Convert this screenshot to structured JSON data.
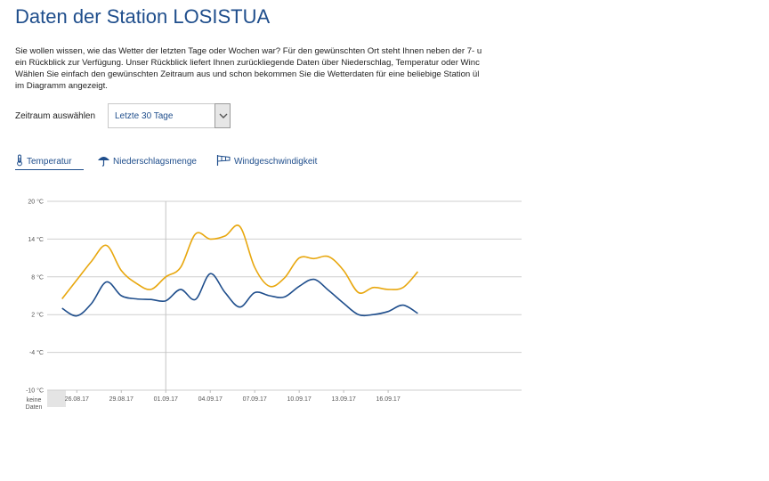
{
  "page": {
    "title": "Daten der Station LOSISTUA",
    "intro_lines": [
      "Sie wollen wissen, wie das Wetter der letzten Tage oder Wochen war? Für den gewünschten Ort steht Ihnen neben der 7- u",
      "ein Rückblick zur Verfügung. Unser Rückblick liefert Ihnen zurückliegende Daten über Niederschlag, Temperatur oder Winc",
      "Wählen Sie einfach den gewünschten Zeitraum aus und schon bekommen Sie die Wetterdaten für eine beliebige Station ül",
      "im Diagramm angezeigt."
    ]
  },
  "period": {
    "label": "Zeitraum auswählen",
    "selected": "Letzte 30 Tage"
  },
  "tabs": [
    {
      "label": "Temperatur",
      "icon": "thermometer-icon",
      "active": true
    },
    {
      "label": "Niederschlagsmenge",
      "icon": "umbrella-icon",
      "active": false
    },
    {
      "label": "Windgeschwindigkeit",
      "icon": "windsock-icon",
      "active": false
    }
  ],
  "chart_data": {
    "type": "line",
    "y_unit": "°C",
    "ylim": [
      -10,
      20
    ],
    "yticks": [
      "20 °C",
      "14 °C",
      "8 °C",
      "2 °C",
      "-4 °C",
      "-10 °C"
    ],
    "xlim": [
      "24.08.17",
      "25.09.17"
    ],
    "xticks": [
      "26.08.17",
      "29.08.17",
      "01.09.17",
      "04.09.17",
      "07.09.17",
      "10.09.17",
      "13.09.17",
      "16.09.17"
    ],
    "grid": "horizontal",
    "marker_line": "01.09.17",
    "no_data_label": "keine Daten",
    "series": [
      {
        "color": "#e8a70e",
        "x": [
          "25.08.17",
          "26.08.17",
          "27.08.17",
          "28.08.17",
          "29.08.17",
          "30.08.17",
          "31.08.17",
          "01.09.17",
          "02.09.17",
          "03.09.17",
          "04.09.17",
          "05.09.17",
          "06.09.17",
          "07.09.17",
          "08.09.17",
          "09.09.17",
          "10.09.17",
          "11.09.17",
          "12.09.17",
          "13.09.17",
          "14.09.17",
          "15.09.17",
          "16.09.17",
          "17.09.17",
          "18.09.17"
        ],
        "values": [
          4.5,
          7.5,
          10.5,
          13.0,
          9.0,
          7.0,
          6.0,
          8.0,
          9.5,
          14.8,
          14.0,
          14.5,
          16.0,
          9.5,
          6.5,
          7.8,
          11.0,
          10.9,
          11.2,
          9.0,
          5.5,
          6.3,
          6.0,
          6.3,
          8.8
        ]
      },
      {
        "color": "#1f4e8c",
        "x": [
          "25.08.17",
          "26.08.17",
          "27.08.17",
          "28.08.17",
          "29.08.17",
          "30.08.17",
          "31.08.17",
          "01.09.17",
          "02.09.17",
          "03.09.17",
          "04.09.17",
          "05.09.17",
          "06.09.17",
          "07.09.17",
          "08.09.17",
          "09.09.17",
          "10.09.17",
          "11.09.17",
          "12.09.17",
          "13.09.17",
          "14.09.17",
          "15.09.17",
          "16.09.17",
          "17.09.17",
          "18.09.17"
        ],
        "values": [
          3.0,
          1.8,
          3.8,
          7.2,
          5.0,
          4.5,
          4.4,
          4.2,
          6.0,
          4.4,
          8.5,
          5.5,
          3.2,
          5.5,
          5.0,
          4.8,
          6.5,
          7.6,
          5.8,
          3.8,
          2.0,
          2.0,
          2.5,
          3.5,
          2.2
        ]
      }
    ]
  }
}
